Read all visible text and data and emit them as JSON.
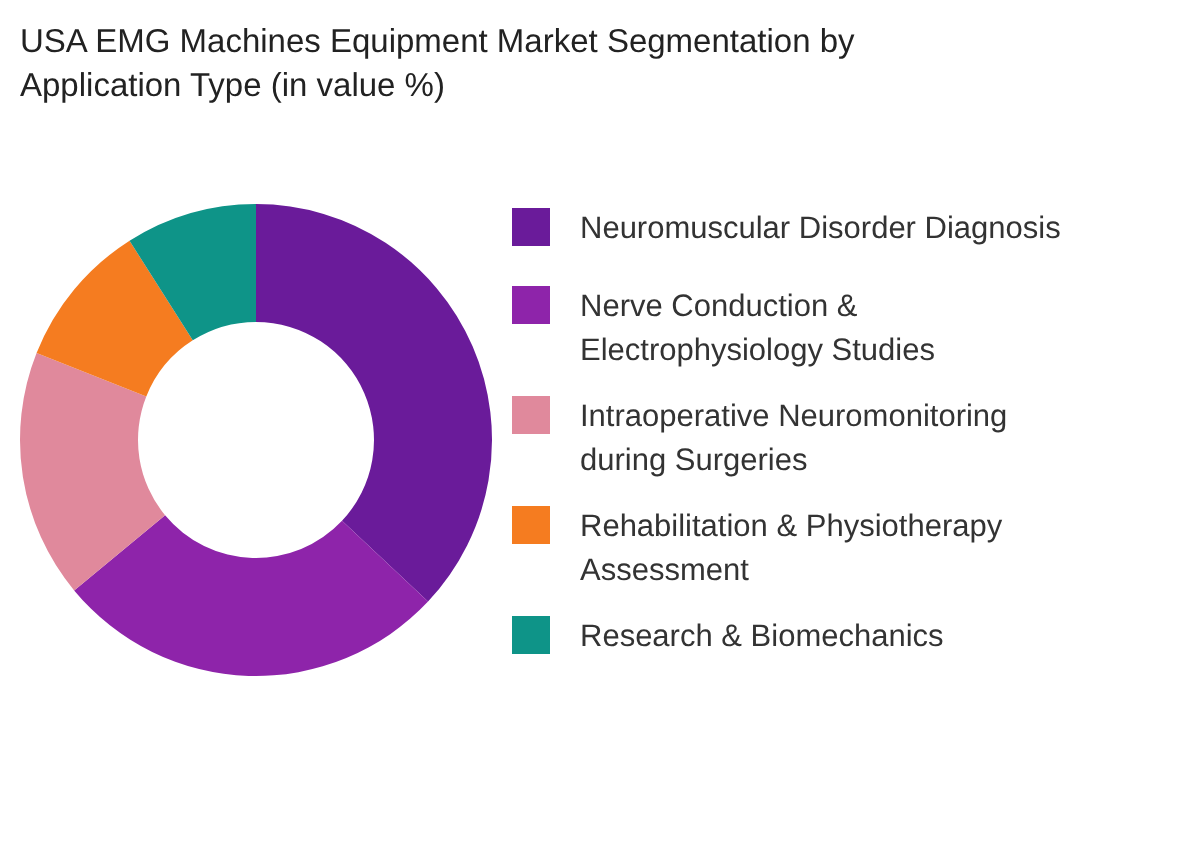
{
  "chart_data": {
    "type": "donut",
    "title": "USA EMG Machines Equipment Market  Segmentation by Application Type  (in value %)",
    "categories": [
      "Neuromuscular Disorder Diagnosis",
      "Nerve Conduction & Electrophysiology Studies",
      "Intraoperative Neuromonitoring during Surgeries",
      "Rehabilitation & Physiotherapy Assessment",
      "Research & Biomechanics"
    ],
    "values": [
      37,
      27,
      17,
      10,
      9
    ],
    "colors": [
      "#6a1b9a",
      "#8e24aa",
      "#e0899c",
      "#f57c20",
      "#0e9488"
    ],
    "legend": "right"
  }
}
